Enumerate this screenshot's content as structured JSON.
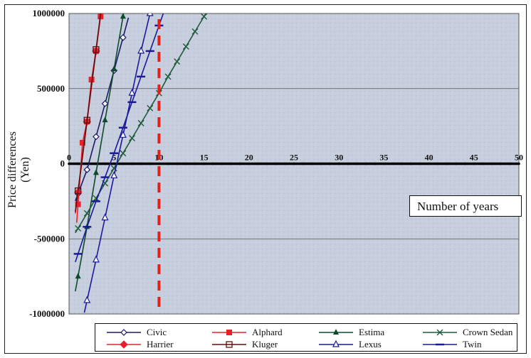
{
  "chart_data": {
    "type": "line",
    "title": "",
    "xlabel": "Number of years",
    "ylabel_lines": [
      "Price differences",
      "(Yen)"
    ],
    "xlim": [
      0,
      50
    ],
    "ylim": [
      -1000000,
      1000000
    ],
    "x_ticks": [
      "0",
      "5",
      "10",
      "15",
      "20",
      "25",
      "30",
      "35",
      "40",
      "45",
      "50"
    ],
    "y_ticks": [
      "1000000",
      "500000",
      "0",
      "-500000",
      "-1000000"
    ],
    "grid": "horizontal",
    "reference_line": {
      "x": 10,
      "color": "#e3201b",
      "style": "dashed"
    },
    "zero_line": {
      "y": 0,
      "color": "#000000"
    },
    "series": [
      {
        "name": "Civic",
        "color": "#1a1a66",
        "marker": "diamond-open",
        "x": [
          1,
          2,
          3,
          4,
          5,
          6
        ],
        "y": [
          -200000,
          -40000,
          180000,
          400000,
          620000,
          840000
        ]
      },
      {
        "name": "Alphard",
        "color": "#e8202a",
        "marker": "square-filled",
        "x": [
          1,
          1.5,
          2,
          2.5,
          3,
          3.5
        ],
        "y": [
          -270000,
          140000,
          280000,
          560000,
          750000,
          980000
        ]
      },
      {
        "name": "Estima",
        "color": "#0d4a2a",
        "marker": "triangle-filled",
        "x": [
          1,
          2,
          3,
          4,
          5,
          6
        ],
        "y": [
          -750000,
          -420000,
          -60000,
          290000,
          630000,
          980000
        ]
      },
      {
        "name": "Crown Sedan",
        "color": "#1f5a3a",
        "marker": "x",
        "x": [
          1,
          2,
          3,
          4,
          5,
          6,
          7,
          8,
          9,
          10,
          11,
          12,
          13,
          14,
          15
        ],
        "y": [
          -430000,
          -330000,
          -230000,
          -130000,
          -30000,
          70000,
          170000,
          270000,
          370000,
          470000,
          580000,
          680000,
          780000,
          880000,
          980000
        ]
      },
      {
        "name": "Harrier",
        "color": "#e8202a",
        "marker": "diamond-filled",
        "x": [
          1,
          2,
          3
        ],
        "y": [
          -190000,
          280000,
          750000
        ]
      },
      {
        "name": "Kluger",
        "color": "#5a1010",
        "marker": "square-open",
        "x": [
          1,
          2,
          3
        ],
        "y": [
          -180000,
          290000,
          760000
        ]
      },
      {
        "name": "Lexus",
        "color": "#1a1a99",
        "marker": "triangle-open",
        "x": [
          2,
          3,
          4,
          5,
          6,
          7,
          8,
          9
        ],
        "y": [
          -910000,
          -640000,
          -360000,
          -80000,
          190000,
          470000,
          750000,
          1000000
        ]
      },
      {
        "name": "Twin",
        "color": "#1a1a99",
        "marker": "dash",
        "x": [
          1,
          2,
          3,
          4,
          5,
          6,
          7,
          8,
          9,
          10
        ],
        "y": [
          -600000,
          -420000,
          -250000,
          -90000,
          70000,
          240000,
          410000,
          580000,
          750000,
          920000
        ]
      }
    ],
    "legend_placement": "bottom"
  }
}
